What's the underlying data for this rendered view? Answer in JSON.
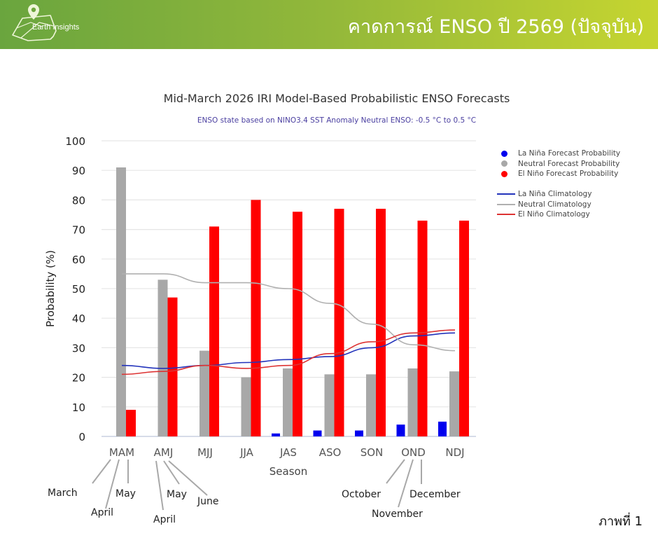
{
  "header": {
    "logo_text": "Earth Insights",
    "title": "คาดการณ์ ENSO ปี 2569 (ปัจจุบัน)"
  },
  "figure_label": "ภาพที่ 1",
  "colors": {
    "la_nina": "#0000ee",
    "neutral": "#a8a8a8",
    "el_nino": "#ff0000",
    "la_nina_clim": "#2233bb",
    "neutral_clim": "#b0b0b0",
    "el_nino_clim": "#dd3333"
  },
  "legend": {
    "items": [
      {
        "label": "La Niña Forecast Probability",
        "kind": "dot",
        "color_key": "la_nina"
      },
      {
        "label": "Neutral Forecast Probability",
        "kind": "dot",
        "color_key": "neutral"
      },
      {
        "label": "El Niño Forecast Probability",
        "kind": "dot",
        "color_key": "el_nino"
      },
      {
        "label": "La Niña Climatology",
        "kind": "line",
        "color_key": "la_nina_clim"
      },
      {
        "label": "Neutral Climatology",
        "kind": "line",
        "color_key": "neutral_clim"
      },
      {
        "label": "El Niño Climatology",
        "kind": "line",
        "color_key": "el_nino_clim"
      }
    ]
  },
  "annotations": {
    "mam_months": [
      "March",
      "April",
      "May"
    ],
    "amj_months": [
      "April",
      "May",
      "June"
    ],
    "ond_months": [
      "October",
      "November",
      "December"
    ]
  },
  "chart_data": {
    "type": "bar",
    "title": "Mid-March 2026 IRI Model-Based Probabilistic ENSO Forecasts",
    "subtitle": "ENSO state based on NINO3.4 SST Anomaly Neutral ENSO: -0.5 °C to 0.5 °C",
    "xlabel": "Season",
    "ylabel": "Probability (%)",
    "ylim": [
      0,
      100
    ],
    "yticks": [
      0,
      10,
      20,
      30,
      40,
      50,
      60,
      70,
      80,
      90,
      100
    ],
    "grid": true,
    "legend_position": "right",
    "categories": [
      "MAM",
      "AMJ",
      "MJJ",
      "JJA",
      "JAS",
      "ASO",
      "SON",
      "OND",
      "NDJ"
    ],
    "series": [
      {
        "name": "La Niña Forecast Probability",
        "type": "bar",
        "color_key": "la_nina",
        "values": [
          0,
          0,
          0,
          0,
          1,
          2,
          2,
          4,
          5
        ]
      },
      {
        "name": "Neutral Forecast Probability",
        "type": "bar",
        "color_key": "neutral",
        "values": [
          91,
          53,
          29,
          20,
          23,
          21,
          21,
          23,
          22
        ]
      },
      {
        "name": "El Niño Forecast Probability",
        "type": "bar",
        "color_key": "el_nino",
        "values": [
          9,
          47,
          71,
          80,
          76,
          77,
          77,
          73,
          73
        ]
      },
      {
        "name": "La Niña Climatology",
        "type": "line",
        "color_key": "la_nina_clim",
        "values": [
          24,
          23,
          24,
          25,
          26,
          27,
          30,
          34,
          35
        ]
      },
      {
        "name": "Neutral Climatology",
        "type": "line",
        "color_key": "neutral_clim",
        "values": [
          55,
          55,
          52,
          52,
          50,
          45,
          38,
          31,
          29
        ]
      },
      {
        "name": "El Niño Climatology",
        "type": "line",
        "color_key": "el_nino_clim",
        "values": [
          21,
          22,
          24,
          23,
          24,
          28,
          32,
          35,
          36
        ]
      }
    ]
  }
}
